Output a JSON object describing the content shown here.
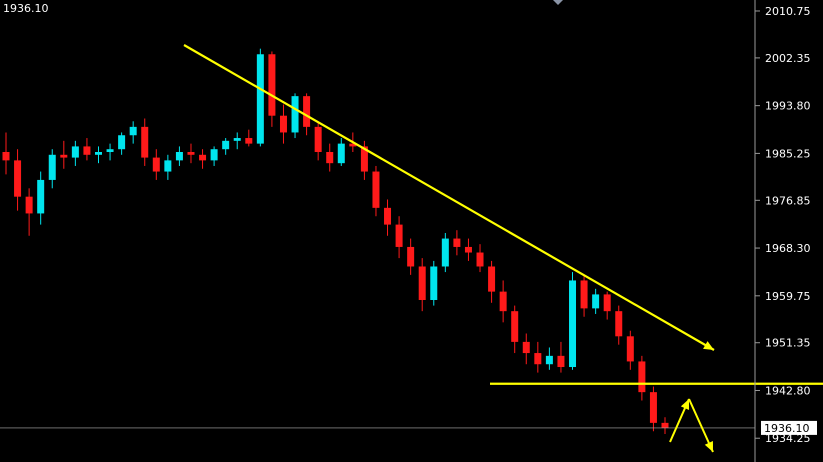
{
  "header": {
    "current_price_label": "1936.10"
  },
  "colors": {
    "background": "#000000",
    "bull": "#00e5ee",
    "bear": "#ff1a1a",
    "trendline": "#ffff00",
    "axis_text": "#ffffff",
    "price_line": "#b0b0b0",
    "price_box_bg": "#ffffff",
    "price_box_text": "#000000",
    "marker": "#8a94a6"
  },
  "chart_data": {
    "type": "candlestick",
    "title": "",
    "xlabel": "",
    "ylabel": "",
    "ylim": [
      1932.5,
      2012.0
    ],
    "y_ticks": [
      "2010.75",
      "2002.35",
      "1993.80",
      "1985.25",
      "1976.85",
      "1968.30",
      "1959.75",
      "1951.35",
      "1942.80",
      "1934.25"
    ],
    "current_price": 1936.1,
    "current_price_label": "1936.10",
    "candles": [
      [
        1985.5,
        1989.0,
        1981.5,
        1984.0
      ],
      [
        1984.0,
        1986.0,
        1975.0,
        1977.5
      ],
      [
        1977.5,
        1979.0,
        1970.5,
        1974.5
      ],
      [
        1974.5,
        1982.0,
        1972.5,
        1980.5
      ],
      [
        1980.5,
        1986.0,
        1979.0,
        1985.0
      ],
      [
        1985.0,
        1987.5,
        1982.5,
        1984.5
      ],
      [
        1984.5,
        1987.5,
        1983.0,
        1986.5
      ],
      [
        1986.5,
        1988.0,
        1984.0,
        1985.0
      ],
      [
        1985.0,
        1986.5,
        1983.5,
        1985.5
      ],
      [
        1985.5,
        1987.0,
        1984.0,
        1986.0
      ],
      [
        1986.0,
        1989.0,
        1985.0,
        1988.5
      ],
      [
        1988.5,
        1991.0,
        1987.0,
        1990.0
      ],
      [
        1990.0,
        1991.5,
        1983.0,
        1984.5
      ],
      [
        1984.5,
        1986.0,
        1980.5,
        1982.0
      ],
      [
        1982.0,
        1985.0,
        1980.5,
        1984.0
      ],
      [
        1984.0,
        1986.5,
        1983.0,
        1985.5
      ],
      [
        1985.5,
        1987.0,
        1983.5,
        1985.0
      ],
      [
        1985.0,
        1986.0,
        1982.5,
        1984.0
      ],
      [
        1984.0,
        1986.5,
        1983.0,
        1986.0
      ],
      [
        1986.0,
        1988.0,
        1985.0,
        1987.5
      ],
      [
        1987.5,
        1989.0,
        1986.0,
        1988.0
      ],
      [
        1988.0,
        1989.5,
        1986.5,
        1987.0
      ],
      [
        1987.0,
        2004.0,
        1986.5,
        2003.0
      ],
      [
        2003.0,
        2003.5,
        1990.0,
        1992.0
      ],
      [
        1992.0,
        1994.0,
        1987.0,
        1989.0
      ],
      [
        1989.0,
        1996.0,
        1988.0,
        1995.5
      ],
      [
        1995.5,
        1996.0,
        1988.5,
        1990.0
      ],
      [
        1990.0,
        1991.0,
        1984.0,
        1985.5
      ],
      [
        1985.5,
        1987.0,
        1982.0,
        1983.5
      ],
      [
        1983.5,
        1988.0,
        1983.0,
        1987.0
      ],
      [
        1987.0,
        1989.0,
        1985.5,
        1986.5
      ],
      [
        1986.5,
        1987.5,
        1980.5,
        1982.0
      ],
      [
        1982.0,
        1983.0,
        1974.0,
        1975.5
      ],
      [
        1975.5,
        1977.0,
        1970.5,
        1972.5
      ],
      [
        1972.5,
        1974.0,
        1966.5,
        1968.5
      ],
      [
        1968.5,
        1970.0,
        1963.5,
        1965.0
      ],
      [
        1965.0,
        1966.5,
        1957.0,
        1959.0
      ],
      [
        1959.0,
        1966.0,
        1958.0,
        1965.0
      ],
      [
        1965.0,
        1971.0,
        1964.0,
        1970.0
      ],
      [
        1970.0,
        1971.5,
        1967.0,
        1968.5
      ],
      [
        1968.5,
        1970.0,
        1966.0,
        1967.5
      ],
      [
        1967.5,
        1969.0,
        1964.0,
        1965.0
      ],
      [
        1965.0,
        1966.0,
        1958.5,
        1960.5
      ],
      [
        1960.5,
        1962.5,
        1955.0,
        1957.0
      ],
      [
        1957.0,
        1958.0,
        1949.5,
        1951.5
      ],
      [
        1951.5,
        1953.0,
        1947.5,
        1949.5
      ],
      [
        1949.5,
        1951.5,
        1946.0,
        1947.5
      ],
      [
        1947.5,
        1950.5,
        1946.5,
        1949.0
      ],
      [
        1949.0,
        1951.5,
        1946.0,
        1947.0
      ],
      [
        1947.0,
        1964.0,
        1946.5,
        1962.5
      ],
      [
        1962.5,
        1963.5,
        1956.0,
        1957.5
      ],
      [
        1957.5,
        1961.0,
        1956.5,
        1960.0
      ],
      [
        1960.0,
        1960.5,
        1955.5,
        1957.0
      ],
      [
        1957.0,
        1958.0,
        1951.0,
        1952.5
      ],
      [
        1952.5,
        1953.5,
        1946.5,
        1948.0
      ],
      [
        1948.0,
        1949.0,
        1941.0,
        1942.5
      ],
      [
        1942.5,
        1943.5,
        1935.5,
        1937.0
      ],
      [
        1937.0,
        1938.0,
        1935.0,
        1936.1
      ]
    ],
    "trendlines": [
      {
        "from": [
          0.0,
          2004.0
        ],
        "to": [
          1.0,
          1950.5
        ]
      },
      {
        "from": [
          0.612,
          1944.0
        ],
        "to": [
          1.0,
          1944.0
        ]
      }
    ],
    "arrows": [
      {
        "from": [
          0.0,
          1950.5
        ],
        "to": [
          0.03,
          1949.0
        ]
      },
      {
        "from": [
          0.84,
          1936.0
        ],
        "to": [
          0.866,
          1942.8
        ]
      },
      {
        "from": [
          0.866,
          1942.8
        ],
        "to": [
          0.895,
          1933.5
        ]
      }
    ]
  }
}
